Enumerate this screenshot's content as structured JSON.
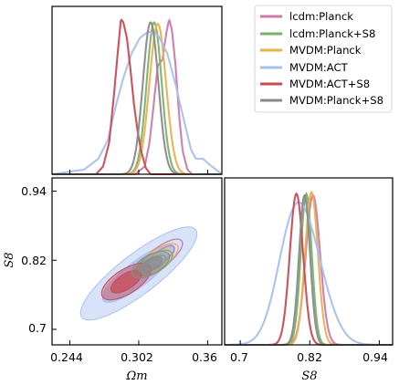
{
  "chart_data": {
    "type": "corner",
    "x_param": {
      "label": "Ωm",
      "ticks": [
        0.244,
        0.302,
        0.36
      ],
      "tick_labels": [
        "0.244",
        "0.302",
        "0.36"
      ],
      "range": [
        0.229,
        0.372
      ]
    },
    "y_param": {
      "label": "S8",
      "ticks": [
        0.7,
        0.82,
        0.94
      ],
      "tick_labels": [
        "0.7",
        "0.82",
        "0.94"
      ],
      "range": [
        0.673,
        0.963
      ]
    },
    "legend": {
      "placement": "top-right"
    },
    "series": [
      {
        "name": "lcdm:Planck",
        "color": "#c97aaa",
        "om_mean": 0.3205,
        "om_sd": 0.0075,
        "s8_mean": 0.826,
        "s8_sd": 0.0125,
        "corr": 0.75,
        "om_curve": [
          [
            0.299,
            0.0
          ],
          [
            0.307,
            0.05
          ],
          [
            0.311,
            0.2
          ],
          [
            0.315,
            0.48
          ],
          [
            0.318,
            0.7
          ],
          [
            0.322,
            0.74
          ],
          [
            0.325,
            0.9
          ],
          [
            0.3275,
            1.0
          ],
          [
            0.33,
            0.93
          ],
          [
            0.333,
            0.7
          ],
          [
            0.336,
            0.38
          ],
          [
            0.339,
            0.15
          ],
          [
            0.343,
            0.03
          ],
          [
            0.347,
            0.0
          ]
        ]
      },
      {
        "name": "lcdm:Planck+S8",
        "color": "#7bb26b",
        "om_mean": 0.315,
        "om_sd": 0.0063,
        "s8_mean": 0.815,
        "s8_sd": 0.009,
        "corr": 0.6
      },
      {
        "name": "MVDM:Planck",
        "color": "#e9b04e",
        "om_mean": 0.318,
        "om_sd": 0.007,
        "s8_mean": 0.822,
        "s8_sd": 0.011,
        "corr": 0.72
      },
      {
        "name": "MVDM:ACT",
        "color": "#a9bff0",
        "om_mean": 0.302,
        "om_sd": 0.02,
        "s8_mean": 0.797,
        "s8_sd": 0.033,
        "corr": 0.85,
        "fill": true,
        "om_curve": [
          [
            0.229,
            0.0
          ],
          [
            0.256,
            0.03
          ],
          [
            0.268,
            0.1
          ],
          [
            0.276,
            0.22
          ],
          [
            0.283,
            0.45
          ],
          [
            0.289,
            0.62
          ],
          [
            0.296,
            0.78
          ],
          [
            0.303,
            0.88
          ],
          [
            0.31,
            0.92
          ],
          [
            0.318,
            0.9
          ],
          [
            0.326,
            0.78
          ],
          [
            0.333,
            0.58
          ],
          [
            0.34,
            0.35
          ],
          [
            0.346,
            0.16
          ],
          [
            0.35,
            0.1
          ],
          [
            0.356,
            0.1
          ],
          [
            0.362,
            0.06
          ],
          [
            0.372,
            0.0
          ]
        ]
      },
      {
        "name": "MVDM:ACT+S8",
        "color": "#c84a55",
        "om_mean": 0.2915,
        "om_sd": 0.0085,
        "s8_mean": 0.783,
        "s8_sd": 0.013,
        "corr": 0.65,
        "fill": true,
        "om_curve": [
          [
            0.266,
            0.0
          ],
          [
            0.272,
            0.05
          ],
          [
            0.277,
            0.2
          ],
          [
            0.281,
            0.5
          ],
          [
            0.2845,
            0.8
          ],
          [
            0.287,
            1.0
          ],
          [
            0.289,
            0.98
          ],
          [
            0.292,
            0.88
          ],
          [
            0.295,
            0.68
          ],
          [
            0.298,
            0.45
          ],
          [
            0.301,
            0.28
          ],
          [
            0.304,
            0.15
          ],
          [
            0.308,
            0.04
          ],
          [
            0.312,
            0.0
          ]
        ]
      },
      {
        "name": "MVDM:Planck+S8",
        "color": "#8a8a8a",
        "om_mean": 0.312,
        "om_sd": 0.0065,
        "s8_mean": 0.812,
        "s8_sd": 0.0095,
        "corr": 0.6,
        "fill": true
      }
    ],
    "note_s8_1d": "S8 marginal peaks approximately at 0.796 (ACT+S8), 0.812 (Planck+S8 variants), 0.822-0.826 (Planck variants), ACT broad around 0.80"
  }
}
